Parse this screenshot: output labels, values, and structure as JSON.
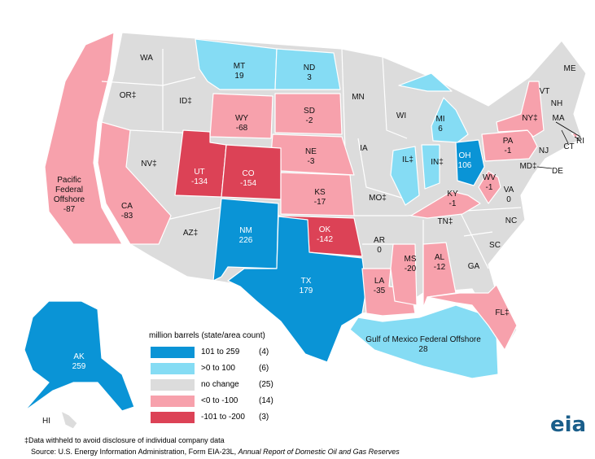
{
  "regions": [
    {
      "name": "WA"
    },
    {
      "name": "OR‡"
    },
    {
      "name": "ID‡"
    },
    {
      "name": "MT",
      "value": 19
    },
    {
      "name": "ND",
      "value": 3
    },
    {
      "name": "ME"
    },
    {
      "name": "VT"
    },
    {
      "name": "NH"
    },
    {
      "name": "MA"
    },
    {
      "name": "RI"
    },
    {
      "name": "CT"
    },
    {
      "name": "NY‡"
    },
    {
      "name": "PA",
      "value": -1
    },
    {
      "name": "NJ"
    },
    {
      "name": "MD‡"
    },
    {
      "name": "DE"
    },
    {
      "name": "SD",
      "value": -2
    },
    {
      "name": "WY",
      "value": -68
    },
    {
      "name": "MN"
    },
    {
      "name": "WI"
    },
    {
      "name": "MI",
      "value": 6
    },
    {
      "name": "NV‡"
    },
    {
      "name": "UT",
      "value": -134
    },
    {
      "name": "CO",
      "value": -154
    },
    {
      "name": "NE",
      "value": -3
    },
    {
      "name": "IA"
    },
    {
      "name": "IL‡"
    },
    {
      "name": "IN‡"
    },
    {
      "name": "OH",
      "value": 106
    },
    {
      "name": "WV",
      "value": -1
    },
    {
      "name": "VA",
      "value": 0
    },
    {
      "name": "KS",
      "value": -17
    },
    {
      "name": "MO‡"
    },
    {
      "name": "KY",
      "value": -1
    },
    {
      "name": "CA",
      "value": -83
    },
    {
      "name": "Pacific Federal Offshore",
      "value": -87
    },
    {
      "name": "AZ‡"
    },
    {
      "name": "NM",
      "value": 226
    },
    {
      "name": "OK",
      "value": -142
    },
    {
      "name": "AR",
      "value": 0
    },
    {
      "name": "TN‡"
    },
    {
      "name": "NC"
    },
    {
      "name": "SC"
    },
    {
      "name": "GA"
    },
    {
      "name": "AL",
      "value": -12
    },
    {
      "name": "MS",
      "value": -20
    },
    {
      "name": "LA",
      "value": -35
    },
    {
      "name": "TX",
      "value": 179
    },
    {
      "name": "FL‡"
    },
    {
      "name": "Gulf of Mexico Federal Offshore",
      "value": 28
    },
    {
      "name": "AK",
      "value": 259
    },
    {
      "name": "HI"
    }
  ],
  "legend": {
    "title": "million barrels (state/area count)",
    "items": [
      {
        "label": "101 to 259",
        "count": "(4)",
        "color": "#0a94d6"
      },
      {
        "label": ">0 to 100",
        "count": "(6)",
        "color": "#85dcf4"
      },
      {
        "label": "no change",
        "count": "(25)",
        "color": "#dcdcdc"
      },
      {
        "label": "<0 to -100",
        "count": "(14)",
        "color": "#f7a1ac"
      },
      {
        "label": "-101 to -200",
        "count": "(3)",
        "color": "#dc4256"
      }
    ]
  },
  "footnote": "‡Data withheld to avoid disclosure of individual company data",
  "source": "Source: U.S. Energy Information Administration, Form EIA-23L, ",
  "source_title": "Annual Report of Domestic Oil and Gas Reserves",
  "logo": "eia"
}
